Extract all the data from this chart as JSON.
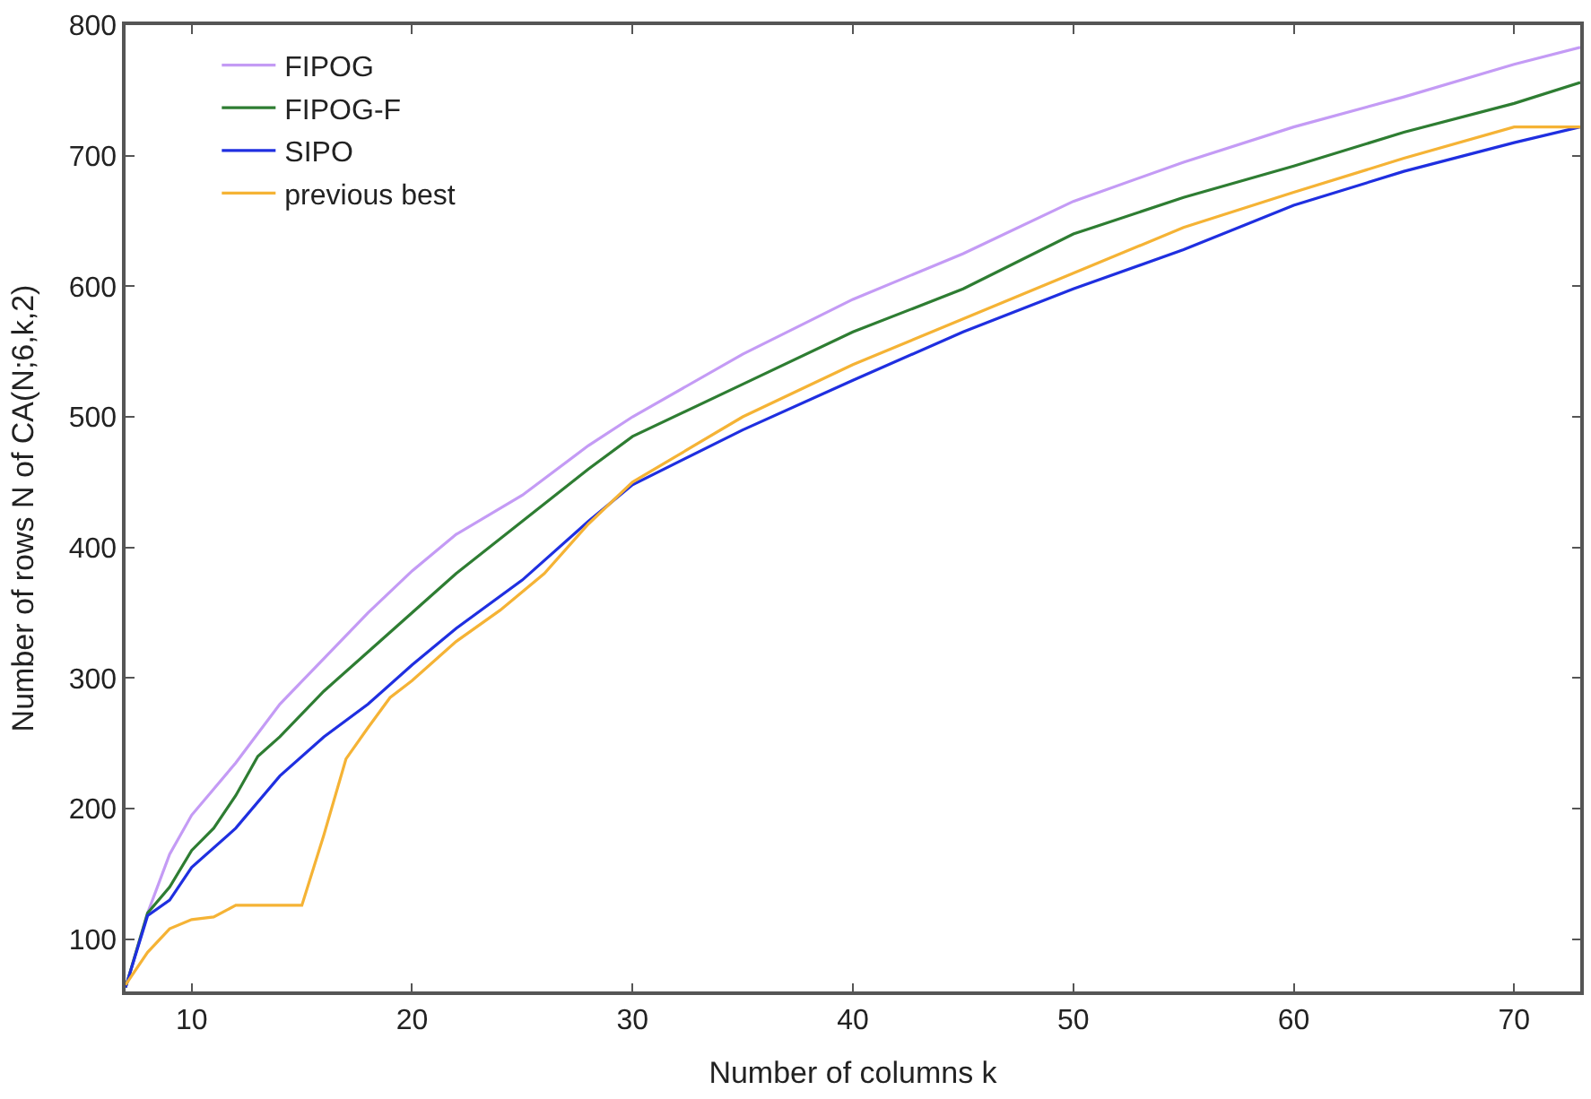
{
  "chart_data": {
    "type": "line",
    "xlabel": "Number of columns k",
    "ylabel": "Number of rows N of CA(N;6,k,2)",
    "xlim": [
      7,
      73
    ],
    "ylim": [
      60,
      800
    ],
    "xticks": [
      10,
      20,
      30,
      40,
      50,
      60,
      70
    ],
    "yticks": [
      100,
      200,
      300,
      400,
      500,
      600,
      700,
      800
    ],
    "legend": "top left",
    "marker": "none",
    "line_style": "solid",
    "series": [
      {
        "name": "FIPOG",
        "color": "#c49bf5",
        "x": [
          7,
          8,
          9,
          10,
          12,
          14,
          16,
          18,
          20,
          22,
          25,
          28,
          30,
          35,
          40,
          45,
          50,
          55,
          60,
          65,
          70,
          73
        ],
        "values": [
          63,
          120,
          165,
          195,
          235,
          280,
          315,
          350,
          382,
          410,
          440,
          478,
          500,
          548,
          590,
          625,
          665,
          695,
          722,
          745,
          770,
          783
        ]
      },
      {
        "name": "FIPOG-F",
        "color": "#2e7d32",
        "x": [
          7,
          8,
          9,
          10,
          11,
          12,
          13,
          14,
          16,
          18,
          20,
          22,
          25,
          28,
          30,
          35,
          40,
          45,
          50,
          55,
          60,
          65,
          70,
          73
        ],
        "values": [
          63,
          120,
          140,
          168,
          185,
          210,
          240,
          255,
          290,
          320,
          350,
          380,
          420,
          460,
          485,
          525,
          565,
          598,
          640,
          668,
          692,
          718,
          740,
          756
        ]
      },
      {
        "name": "SIPO",
        "color": "#1f2fe0",
        "x": [
          7,
          8,
          9,
          10,
          12,
          14,
          16,
          18,
          20,
          22,
          25,
          28,
          30,
          35,
          40,
          45,
          50,
          55,
          60,
          65,
          70,
          73
        ],
        "values": [
          63,
          118,
          130,
          155,
          185,
          225,
          255,
          280,
          310,
          338,
          375,
          420,
          448,
          490,
          528,
          565,
          598,
          628,
          662,
          688,
          710,
          722
        ]
      },
      {
        "name": "previous best",
        "color": "#f5b335",
        "x": [
          7,
          8,
          9,
          10,
          11,
          12,
          13,
          14,
          15,
          16,
          17,
          18,
          19,
          20,
          22,
          24,
          26,
          28,
          30,
          35,
          40,
          45,
          50,
          55,
          60,
          65,
          70,
          73
        ],
        "values": [
          65,
          90,
          108,
          115,
          117,
          126,
          126,
          126,
          126,
          180,
          238,
          262,
          285,
          298,
          328,
          352,
          380,
          418,
          450,
          500,
          540,
          575,
          610,
          645,
          672,
          698,
          722,
          722
        ]
      }
    ]
  }
}
